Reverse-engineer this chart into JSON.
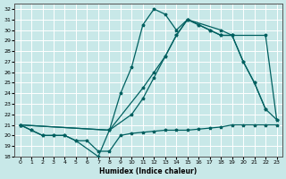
{
  "xlabel": "Humidex (Indice chaleur)",
  "ylabel": "",
  "bg_color": "#c8e8e8",
  "grid_color": "#ffffff",
  "line_color": "#006060",
  "xlim": [
    -0.5,
    23.5
  ],
  "ylim": [
    18,
    32.5
  ],
  "xticks": [
    0,
    1,
    2,
    3,
    4,
    5,
    6,
    7,
    8,
    9,
    10,
    11,
    12,
    13,
    14,
    15,
    16,
    17,
    18,
    19,
    20,
    21,
    22,
    23
  ],
  "yticks": [
    18,
    19,
    20,
    21,
    22,
    23,
    24,
    25,
    26,
    27,
    28,
    29,
    30,
    31,
    32
  ],
  "line1_x": [
    0,
    1,
    2,
    3,
    4,
    5,
    6,
    7,
    8,
    9,
    10,
    11,
    12,
    13,
    14,
    15,
    16,
    17,
    18,
    19,
    20,
    21,
    22,
    23
  ],
  "line1_y": [
    21.0,
    20.5,
    20.0,
    20.0,
    20.0,
    19.5,
    19.5,
    18.5,
    18.5,
    20.0,
    20.2,
    20.3,
    20.4,
    20.5,
    20.5,
    20.5,
    20.6,
    20.7,
    20.8,
    21.0,
    21.0,
    21.0,
    21.0,
    21.0
  ],
  "line2_x": [
    0,
    1,
    2,
    3,
    4,
    5,
    7,
    8,
    9,
    10,
    11,
    12,
    13,
    14,
    15,
    18,
    19,
    22,
    23
  ],
  "line2_y": [
    21.0,
    20.5,
    20.0,
    20.0,
    20.0,
    19.5,
    18.0,
    20.5,
    24.0,
    26.5,
    30.5,
    32.0,
    31.5,
    30.0,
    31.0,
    30.0,
    29.5,
    29.5,
    21.5
  ],
  "line3_x": [
    0,
    8,
    11,
    12,
    13,
    14,
    15,
    16,
    17,
    18,
    19,
    20,
    21,
    22
  ],
  "line3_y": [
    21.0,
    20.5,
    24.5,
    26.0,
    27.5,
    29.5,
    31.0,
    30.5,
    30.0,
    29.5,
    29.5,
    27.0,
    25.0,
    22.5
  ],
  "line4_x": [
    0,
    8,
    10,
    11,
    12,
    13,
    14,
    15,
    16,
    17,
    18,
    19,
    20,
    21,
    22,
    23
  ],
  "line4_y": [
    21.0,
    20.5,
    22.0,
    23.5,
    25.5,
    27.5,
    29.5,
    31.0,
    30.5,
    30.0,
    29.5,
    29.5,
    27.0,
    25.0,
    22.5,
    21.5
  ]
}
